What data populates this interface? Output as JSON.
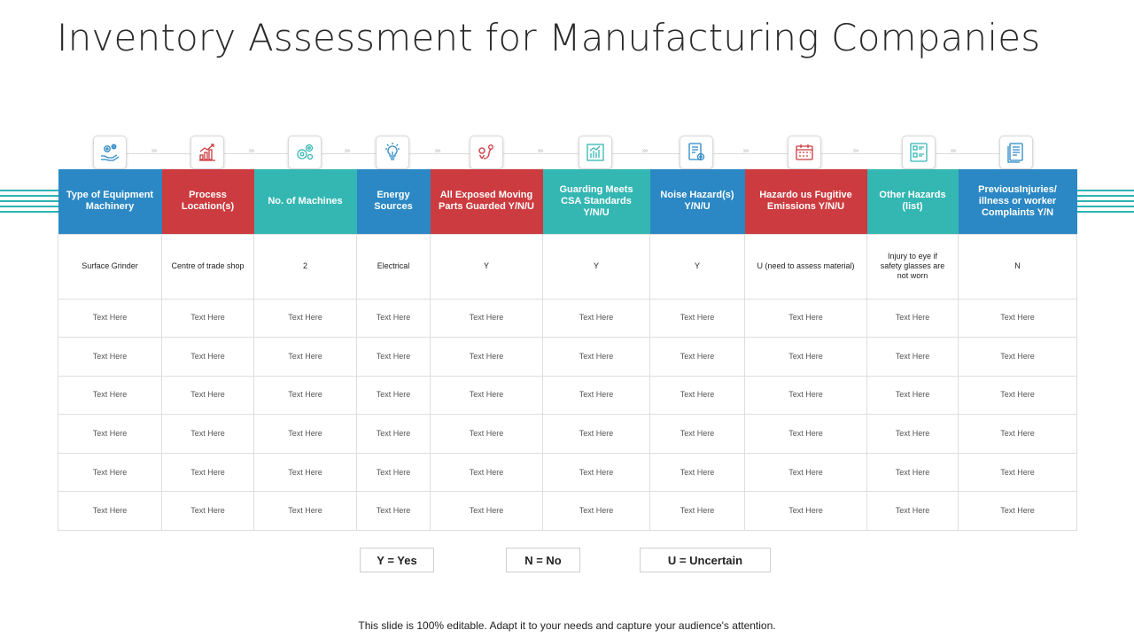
{
  "title": "Inventory Assessment for Manufacturing Companies",
  "columns": [
    {
      "header": "Type of Equipment Machinery",
      "icon": "hand-gears-icon",
      "color": "#2b88c4"
    },
    {
      "header": "Process Location(s)",
      "icon": "growth-chart-icon",
      "color": "#cc3b3f"
    },
    {
      "header": "No. of Machines",
      "icon": "gears-icon",
      "color": "#34b7b3"
    },
    {
      "header": "Energy Sources",
      "icon": "lightbulb-icon",
      "color": "#2b88c4"
    },
    {
      "header": "All Exposed Moving Parts Guarded Y/N/U",
      "icon": "map-route-icon",
      "color": "#cc3b3f"
    },
    {
      "header": "Guarding Meets CSA Standards Y/N/U",
      "icon": "bar-chart-icon",
      "color": "#34b7b3"
    },
    {
      "header": "Noise Hazard(s) Y/N/U",
      "icon": "report-settings-icon",
      "color": "#2b88c4"
    },
    {
      "header": "Hazardo us Fugitive Emissions Y/N/U",
      "icon": "calendar-icon",
      "color": "#cc3b3f"
    },
    {
      "header": "Other Hazards (list)",
      "icon": "checklist-icon",
      "color": "#34b7b3"
    },
    {
      "header": "PreviousInjuries/ illness or worker Complaints Y/N",
      "icon": "document-icon",
      "color": "#2b88c4"
    }
  ],
  "rows": [
    [
      "Surface Grinder",
      "Centre of trade shop",
      "2",
      "Electrical",
      "Y",
      "Y",
      "Y",
      "U (need to assess material)",
      "Injury to eye if safety  glasses are not worn",
      "N"
    ],
    [
      "Text Here",
      "Text Here",
      "Text Here",
      "Text Here",
      "Text Here",
      "Text Here",
      "Text Here",
      "Text Here",
      "Text Here",
      "Text Here"
    ],
    [
      "Text Here",
      "Text Here",
      "Text Here",
      "Text Here",
      "Text Here",
      "Text Here",
      "Text Here",
      "Text Here",
      "Text Here",
      "Text Here"
    ],
    [
      "Text Here",
      "Text Here",
      "Text Here",
      "Text Here",
      "Text Here",
      "Text Here",
      "Text Here",
      "Text Here",
      "Text Here",
      "Text Here"
    ],
    [
      "Text Here",
      "Text Here",
      "Text Here",
      "Text Here",
      "Text Here",
      "Text Here",
      "Text Here",
      "Text Here",
      "Text Here",
      "Text Here"
    ],
    [
      "Text Here",
      "Text Here",
      "Text Here",
      "Text Here",
      "Text Here",
      "Text Here",
      "Text Here",
      "Text Here",
      "Text Here",
      "Text Here"
    ],
    [
      "Text Here",
      "Text Here",
      "Text Here",
      "Text Here",
      "Text Here",
      "Text Here",
      "Text Here",
      "Text Here",
      "Text Here",
      "Text Here"
    ]
  ],
  "legend": {
    "yes": "Y = Yes",
    "no": "N = No",
    "uncertain": "U = Uncertain"
  },
  "footer": "This slide is 100% editable. Adapt it to your needs and capture your audience's attention.",
  "colors": {
    "blue": "#2b88c4",
    "red": "#cc3b3f",
    "teal": "#34b7b3"
  }
}
